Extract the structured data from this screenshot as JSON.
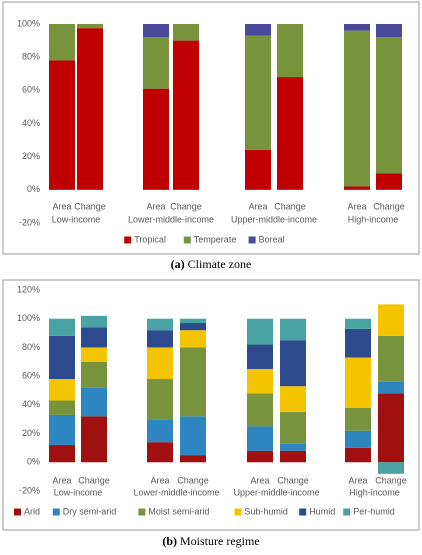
{
  "chart_data": [
    {
      "type": "bar",
      "stacked": true,
      "caption_label": "(a)",
      "caption": "Climate zone",
      "categories": [
        "Area",
        "Change",
        "Area",
        "Change",
        "Area",
        "Change",
        "Area",
        "Change"
      ],
      "groups": [
        "Low-income",
        "Lower-middle-income",
        "Upper-middle-income",
        "High-income"
      ],
      "ylim": [
        -20,
        100
      ],
      "yticks": [
        {
          "value": -20,
          "label": "-20%"
        },
        {
          "value": 0,
          "label": "0%"
        },
        {
          "value": 20,
          "label": "20%"
        },
        {
          "value": 40,
          "label": "40%"
        },
        {
          "value": 60,
          "label": "60%"
        },
        {
          "value": 80,
          "label": "80%"
        },
        {
          "value": 100,
          "label": "100%"
        }
      ],
      "legend": "bottom",
      "series": [
        {
          "name": "Tropical",
          "color": "#c00000",
          "values": [
            78,
            97.5,
            61,
            90,
            24,
            68,
            2,
            10
          ]
        },
        {
          "name": "Temperate",
          "color": "#77933c",
          "values": [
            22,
            2.5,
            31,
            10,
            69,
            32,
            94,
            82
          ]
        },
        {
          "name": "Boreal",
          "color": "#4a4a9a",
          "values": [
            0,
            0,
            8,
            0,
            7,
            0,
            4,
            8
          ]
        }
      ]
    },
    {
      "type": "bar",
      "stacked": true,
      "caption_label": "(b)",
      "caption": "Moisture regime",
      "categories": [
        "Area",
        "Change",
        "Area",
        "Change",
        "Area",
        "Change",
        "Area",
        "Change"
      ],
      "groups": [
        "Low-income",
        "Lower-middle-income",
        "Upper-middle-income",
        "High-income"
      ],
      "ylim": [
        -20,
        120
      ],
      "yticks": [
        {
          "value": -20,
          "label": "-20%"
        },
        {
          "value": 0,
          "label": "0%"
        },
        {
          "value": 20,
          "label": "20%"
        },
        {
          "value": 40,
          "label": "40%"
        },
        {
          "value": 60,
          "label": "60%"
        },
        {
          "value": 80,
          "label": "80%"
        },
        {
          "value": 100,
          "label": "100%"
        },
        {
          "value": 120,
          "label": "120%"
        }
      ],
      "legend": "bottom",
      "series": [
        {
          "name": "Arid",
          "color": "#a01010",
          "values": [
            12,
            32,
            14,
            5,
            8,
            8,
            10,
            48
          ]
        },
        {
          "name": "Dry semi-arid",
          "color": "#2e86c1",
          "values": [
            21,
            20,
            16,
            27,
            17,
            5,
            12,
            8
          ]
        },
        {
          "name": "Moist semi-arid",
          "color": "#77933c",
          "values": [
            10,
            18,
            28,
            48,
            23,
            22,
            16,
            32
          ]
        },
        {
          "name": "Sub-humid",
          "color": "#f5c400",
          "values": [
            15,
            10,
            22,
            12,
            17,
            18,
            35,
            22
          ]
        },
        {
          "name": "Humid",
          "color": "#2e4a8f",
          "values": [
            30,
            14,
            12,
            5,
            17,
            32,
            20,
            0
          ]
        },
        {
          "name": "Per-humid",
          "color": "#4aa3a3",
          "values": [
            12,
            8,
            8,
            3,
            18,
            15,
            7,
            -8
          ]
        }
      ]
    }
  ]
}
